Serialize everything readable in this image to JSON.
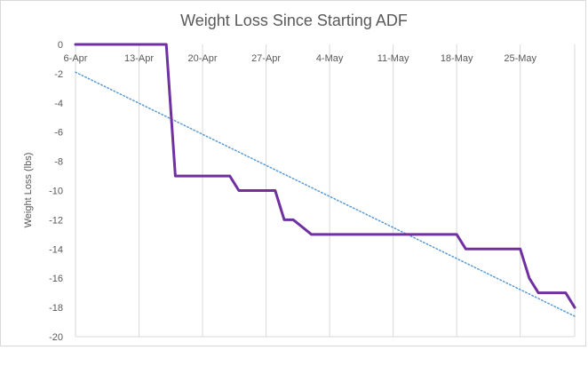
{
  "chart_data": {
    "type": "line",
    "title": "Weight Loss Since Starting ADF",
    "xlabel": "",
    "ylabel": "Weight Loss (lbs)",
    "x_tick_labels": [
      "6-Apr",
      "13-Apr",
      "20-Apr",
      "27-Apr",
      "4-May",
      "11-May",
      "18-May",
      "25-May"
    ],
    "y_tick_labels": [
      "0",
      "-2",
      "-4",
      "-6",
      "-8",
      "-10",
      "-12",
      "-14",
      "-16",
      "-18",
      "-20"
    ],
    "xlim": [
      "2019-04-06",
      "2019-05-31"
    ],
    "ylim": [
      -20,
      0
    ],
    "grid": "vertical",
    "legend": "none",
    "colors": {
      "series": "#7030a0",
      "trendline": "#5b9bd5",
      "grid": "#d9d9d9",
      "text": "#595959"
    },
    "series": [
      {
        "x": [
          "2019-04-06",
          "2019-04-16",
          "2019-04-17",
          "2019-04-23",
          "2019-04-24",
          "2019-04-28",
          "2019-04-29",
          "2019-04-30",
          "2019-05-02",
          "2019-05-03",
          "2019-05-18",
          "2019-05-19",
          "2019-05-25",
          "2019-05-26",
          "2019-05-27",
          "2019-05-30",
          "2019-05-31"
        ],
        "values": [
          0,
          0,
          -9,
          -9,
          -10,
          -10,
          -12,
          -12,
          -13,
          -13,
          -13,
          -14,
          -14,
          -16,
          -17,
          -17,
          -18
        ]
      }
    ],
    "trendline": {
      "type": "linear",
      "style": "dotted",
      "x": [
        "2019-04-06",
        "2019-05-31"
      ],
      "values": [
        -1.9,
        -18.6
      ]
    }
  }
}
